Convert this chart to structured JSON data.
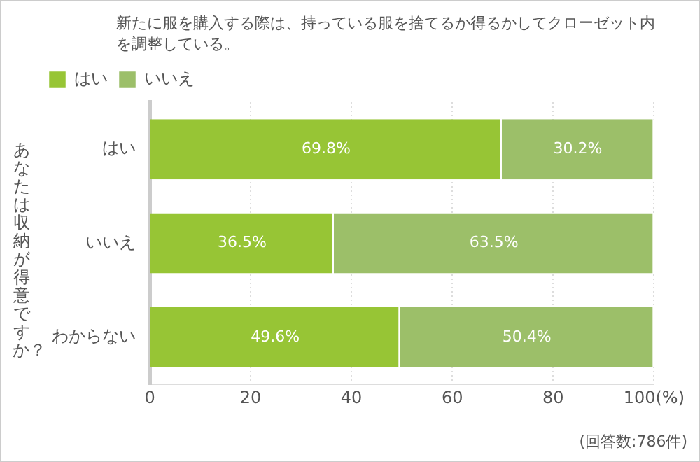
{
  "chart_data": {
    "type": "bar",
    "orientation": "horizontal",
    "stacked": true,
    "title": "新たに服を購入する際は、持っている服を捨てるか得るかしてクローゼット内を調整している。",
    "ylabel": "あなたは収納が得意ですか？",
    "categories": [
      "はい",
      "いいえ",
      "わからない"
    ],
    "series": [
      {
        "name": "はい",
        "color": "#97c535",
        "values": [
          69.8,
          36.5,
          49.6
        ],
        "value_labels": [
          "69.8%",
          "36.5%",
          "49.6%"
        ]
      },
      {
        "name": "いいえ",
        "color": "#9cbf69",
        "values": [
          30.2,
          63.5,
          50.4
        ],
        "value_labels": [
          "30.2%",
          "63.5%",
          "50.4%"
        ]
      }
    ],
    "xlim": [
      0,
      100
    ],
    "xticks": [
      0,
      20,
      40,
      60,
      80,
      {
        "value": 100,
        "label": "100(%)"
      }
    ],
    "grid": "x",
    "legend": "top left",
    "annotations": [
      "(回答数:786件)"
    ]
  }
}
